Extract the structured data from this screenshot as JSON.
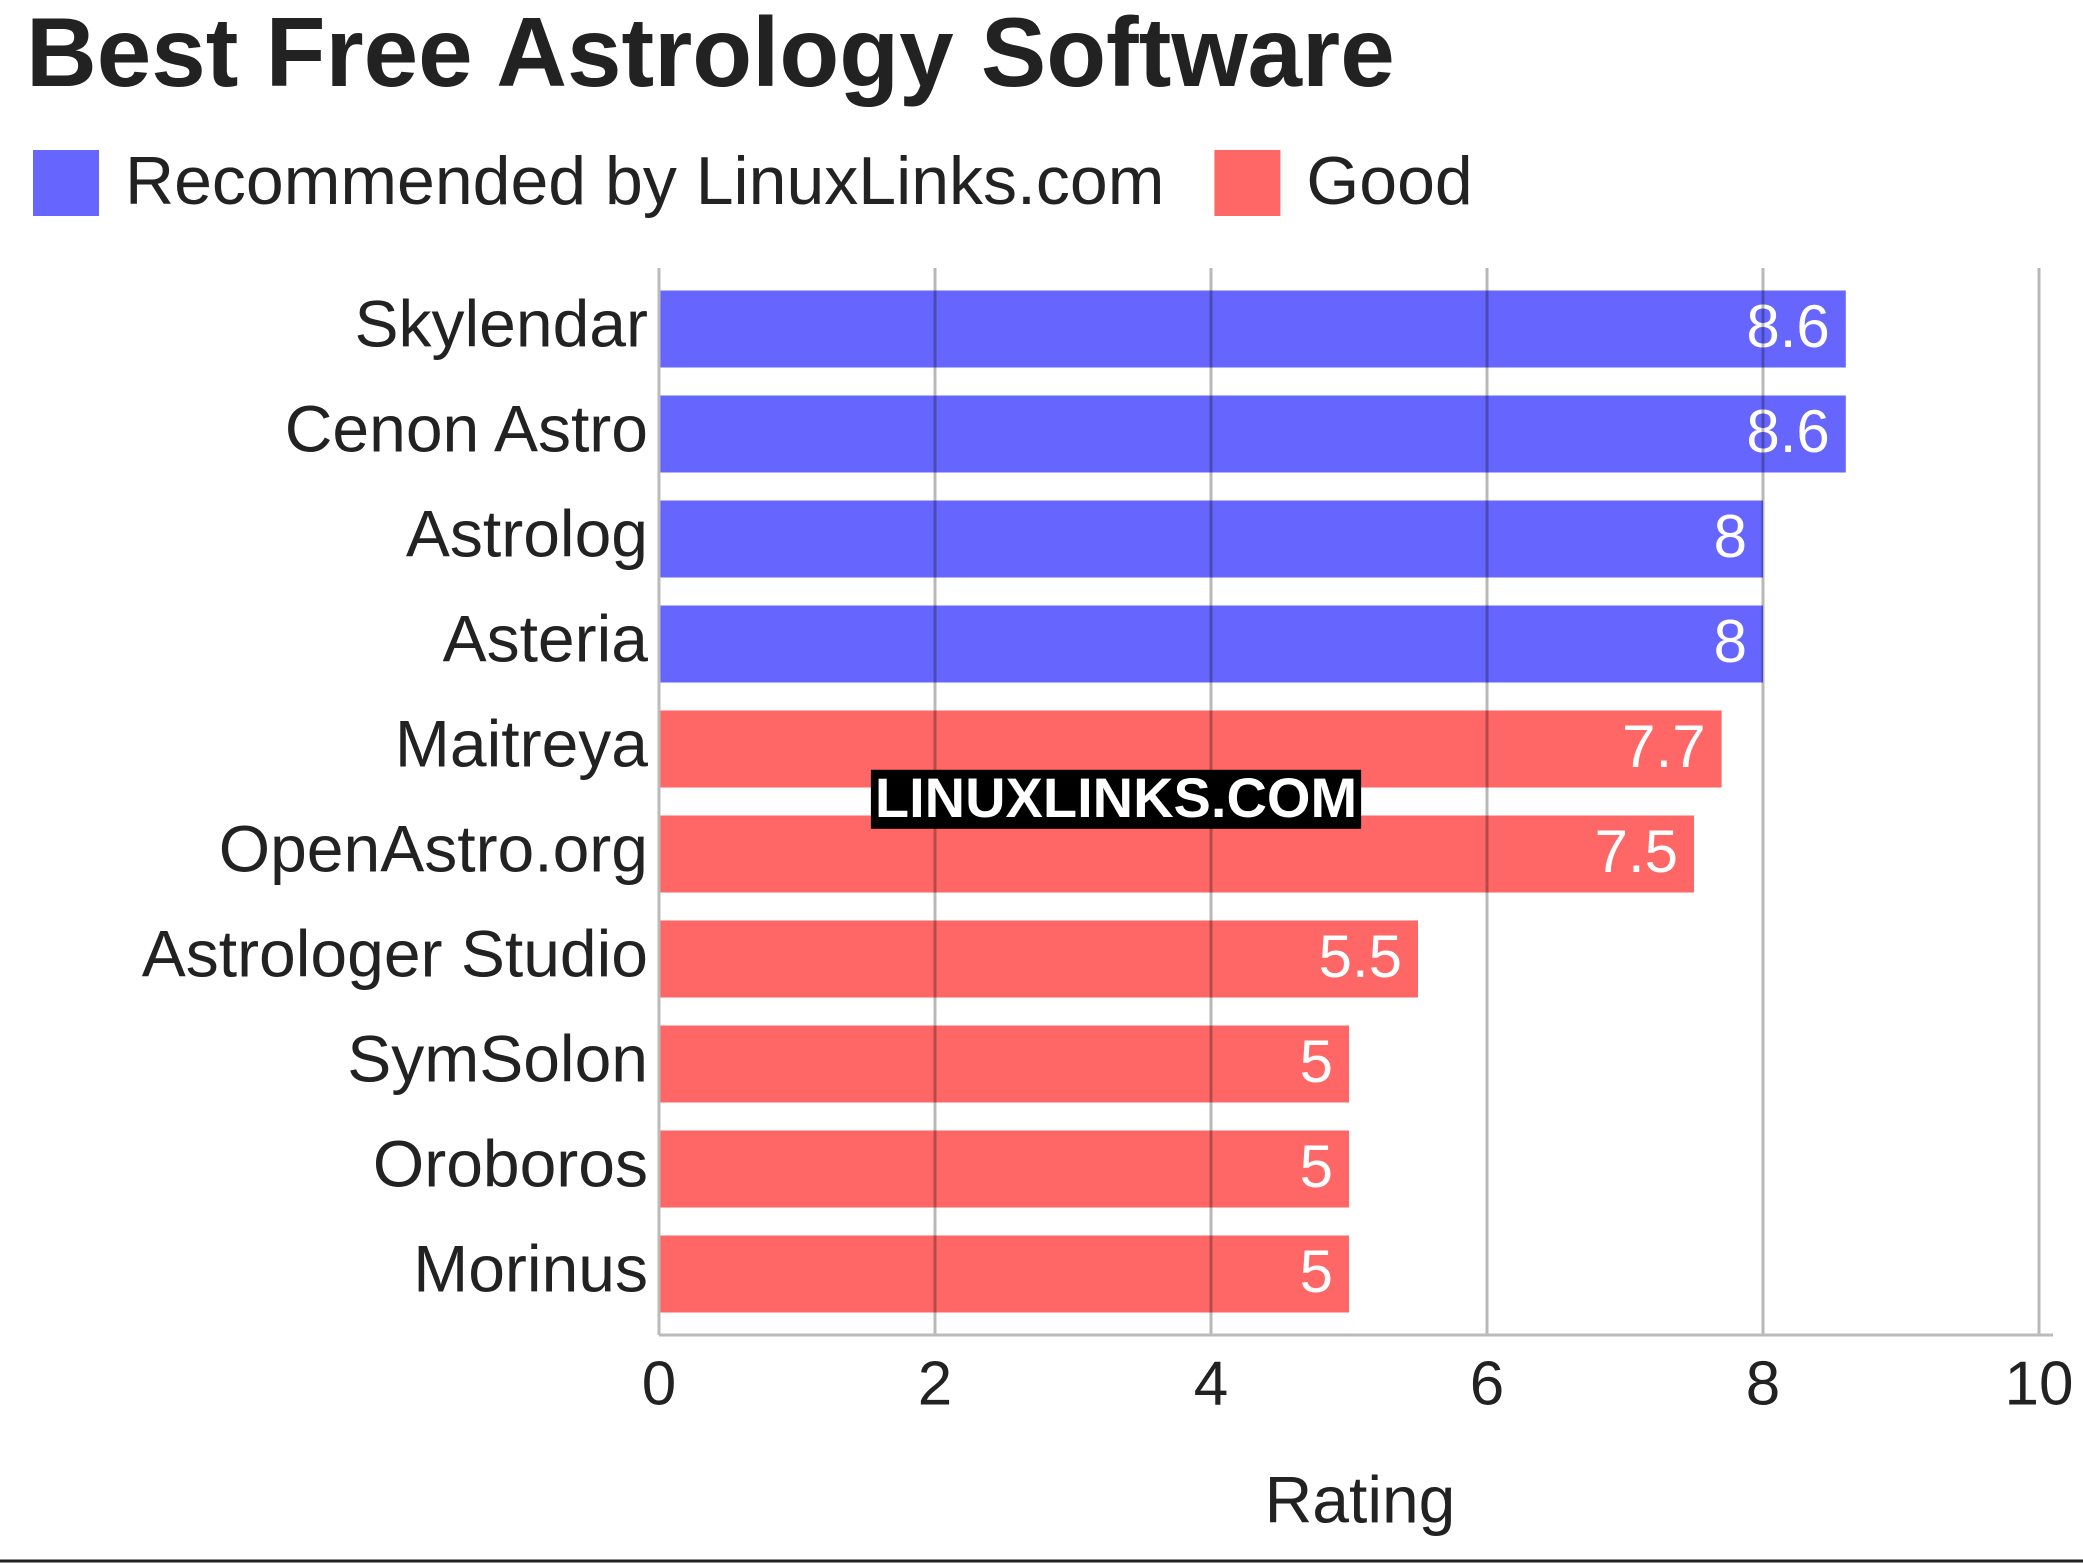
{
  "chart_data": {
    "type": "bar",
    "orientation": "horizontal",
    "title": "Best Free Astrology Software",
    "categories": [
      "Skylendar",
      "Cenon Astro",
      "Astrolog",
      "Asteria",
      "Maitreya",
      "OpenAstro.org",
      "Astrologer Studio",
      "SymSolon",
      "Oroboros",
      "Morinus"
    ],
    "series": [
      {
        "name": "Recommended by LinuxLinks.com",
        "color": "#6666ff",
        "values": [
          8.6,
          8.6,
          8,
          8,
          null,
          null,
          null,
          null,
          null,
          null
        ]
      },
      {
        "name": "Good",
        "color": "#ff6666",
        "values": [
          null,
          null,
          null,
          null,
          7.7,
          7.5,
          5.5,
          5,
          5,
          5
        ]
      }
    ],
    "xlabel": "Rating",
    "xlim": [
      0,
      10
    ],
    "xticks": [
      0,
      2,
      4,
      6,
      8,
      10
    ],
    "grid": true,
    "watermark": "LINUXLINKS.COM"
  }
}
